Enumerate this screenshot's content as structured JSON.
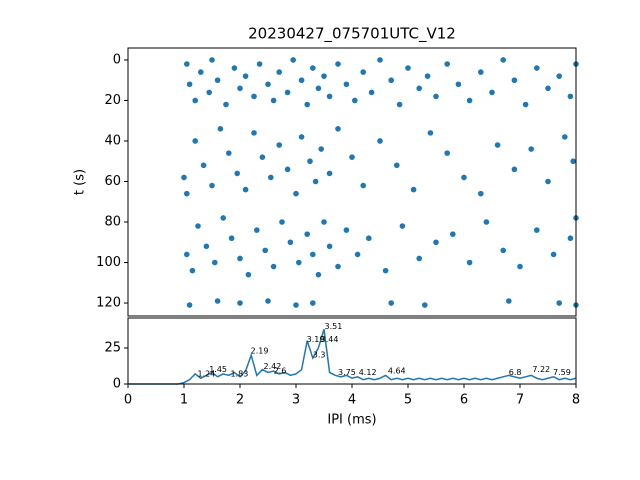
{
  "chart_data": [
    {
      "type": "scatter",
      "title": "20230427_075701UTC_V12",
      "y_label": "t (s)",
      "color": "#1f77b4",
      "xlim": [
        0,
        8
      ],
      "ylim": [
        126.4,
        -5.9
      ],
      "yticks": [
        0,
        20,
        40,
        60,
        80,
        100,
        120
      ],
      "x": [
        1.05,
        1.1,
        1.2,
        1.3,
        1.45,
        1.5,
        1.6,
        1.75,
        1.9,
        2.0,
        2.1,
        2.25,
        2.35,
        2.5,
        2.6,
        2.7,
        2.85,
        2.95,
        3.1,
        3.2,
        3.3,
        3.4,
        3.5,
        3.6,
        3.75,
        3.9,
        4.05,
        4.2,
        4.35,
        4.5,
        4.7,
        4.85,
        5.0,
        5.2,
        5.35,
        5.5,
        5.7,
        5.9,
        6.1,
        6.3,
        6.5,
        6.7,
        6.9,
        7.1,
        7.3,
        7.5,
        7.7,
        7.9,
        8.0,
        1.0,
        1.05,
        1.2,
        1.35,
        1.5,
        1.65,
        1.8,
        1.95,
        2.1,
        2.25,
        2.4,
        2.55,
        2.7,
        2.85,
        3.0,
        3.1,
        3.25,
        3.35,
        3.45,
        3.6,
        3.75,
        4.0,
        4.2,
        4.5,
        4.8,
        5.1,
        5.4,
        5.7,
        6.0,
        6.3,
        6.6,
        6.9,
        7.2,
        7.5,
        7.8,
        7.95,
        1.05,
        1.15,
        1.25,
        1.4,
        1.55,
        1.7,
        1.85,
        2.0,
        2.15,
        2.3,
        2.45,
        2.6,
        2.75,
        2.9,
        3.05,
        3.2,
        3.3,
        3.4,
        3.5,
        3.6,
        3.75,
        3.9,
        4.1,
        4.3,
        4.6,
        4.9,
        5.2,
        5.5,
        5.8,
        6.1,
        6.4,
        6.7,
        7.0,
        7.3,
        7.6,
        7.9,
        8.0,
        1.1,
        1.6,
        2.0,
        2.5,
        3.0,
        3.3,
        4.7,
        5.3,
        6.8,
        7.7,
        8.0
      ],
      "y": [
        2,
        12,
        20,
        6,
        16,
        0,
        10,
        22,
        4,
        14,
        8,
        18,
        2,
        12,
        20,
        6,
        16,
        0,
        10,
        22,
        4,
        14,
        8,
        18,
        2,
        12,
        20,
        6,
        16,
        0,
        10,
        22,
        4,
        14,
        8,
        18,
        2,
        12,
        20,
        6,
        16,
        0,
        10,
        22,
        4,
        14,
        8,
        18,
        2,
        58,
        66,
        40,
        52,
        62,
        34,
        46,
        56,
        64,
        36,
        48,
        58,
        42,
        54,
        66,
        38,
        50,
        60,
        44,
        56,
        34,
        48,
        62,
        40,
        52,
        64,
        36,
        46,
        58,
        66,
        42,
        54,
        44,
        60,
        38,
        50,
        96,
        104,
        82,
        92,
        100,
        78,
        88,
        98,
        106,
        84,
        94,
        102,
        80,
        90,
        100,
        86,
        96,
        106,
        80,
        92,
        102,
        84,
        96,
        88,
        104,
        82,
        98,
        90,
        86,
        100,
        80,
        94,
        102,
        84,
        96,
        88,
        78,
        121,
        119,
        120,
        119,
        121,
        120,
        120,
        121,
        119,
        120,
        121
      ]
    },
    {
      "type": "line",
      "x_label": "IPI (ms)",
      "color": "#1f77b4",
      "xlim": [
        0,
        8
      ],
      "ylim": [
        0,
        45.8
      ],
      "xticks": [
        0,
        1,
        2,
        3,
        4,
        5,
        6,
        7,
        8
      ],
      "yticks": [
        0,
        25
      ],
      "x": [
        0,
        0.1,
        0.2,
        0.3,
        0.4,
        0.5,
        0.6,
        0.7,
        0.8,
        0.9,
        1.0,
        1.1,
        1.2,
        1.3,
        1.4,
        1.5,
        1.6,
        1.7,
        1.8,
        1.9,
        2.0,
        2.1,
        2.2,
        2.3,
        2.4,
        2.5,
        2.6,
        2.7,
        2.8,
        2.9,
        3.0,
        3.1,
        3.2,
        3.3,
        3.4,
        3.5,
        3.6,
        3.7,
        3.8,
        3.9,
        4.0,
        4.1,
        4.2,
        4.3,
        4.4,
        4.5,
        4.6,
        4.7,
        4.8,
        4.9,
        5.0,
        5.1,
        5.2,
        5.3,
        5.4,
        5.5,
        5.6,
        5.7,
        5.8,
        5.9,
        6.0,
        6.1,
        6.2,
        6.3,
        6.4,
        6.5,
        6.6,
        6.7,
        6.8,
        6.9,
        7.0,
        7.1,
        7.2,
        7.3,
        7.4,
        7.5,
        7.6,
        7.7,
        7.8,
        7.9,
        8.0
      ],
      "values": [
        0,
        0,
        0,
        0,
        0,
        0,
        0,
        0,
        0,
        0,
        1,
        3,
        7,
        4,
        6,
        8,
        5,
        7,
        6,
        8,
        5,
        9,
        20,
        6,
        10,
        8,
        9,
        7,
        8,
        6,
        7,
        10,
        30,
        18,
        25,
        38,
        8,
        6,
        5,
        6,
        4,
        5,
        3,
        4,
        3,
        4,
        6,
        3,
        4,
        3,
        4,
        3,
        4,
        3,
        4,
        3,
        4,
        3,
        4,
        3,
        4,
        3,
        4,
        3,
        4,
        3,
        4,
        5,
        6,
        5,
        4,
        5,
        6,
        4,
        3,
        4,
        5,
        3,
        4,
        3,
        4
      ],
      "annotations": [
        {
          "x": 1.24,
          "y": 7
        },
        {
          "x": 1.45,
          "y": 10
        },
        {
          "x": 1.83,
          "y": 7
        },
        {
          "x": 2.19,
          "y": 23
        },
        {
          "x": 2.42,
          "y": 12
        },
        {
          "x": 2.6,
          "y": 9
        },
        {
          "x": 3.19,
          "y": 31
        },
        {
          "x": 3.3,
          "y": 20
        },
        {
          "x": 3.44,
          "y": 31
        },
        {
          "x": 3.51,
          "y": 40
        },
        {
          "x": 3.75,
          "y": 8
        },
        {
          "x": 4.12,
          "y": 8
        },
        {
          "x": 4.64,
          "y": 9
        },
        {
          "x": 6.8,
          "y": 8
        },
        {
          "x": 7.22,
          "y": 10
        },
        {
          "x": 7.59,
          "y": 8
        }
      ]
    }
  ]
}
